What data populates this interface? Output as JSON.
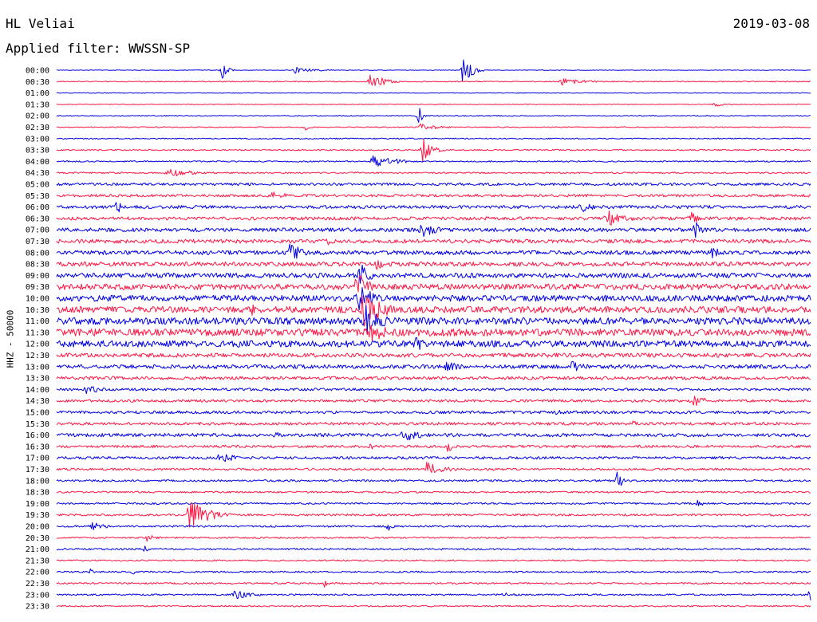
{
  "header": {
    "station": "HL Veliai",
    "date": "2019-03-08",
    "filter": "Applied filter: WWSSN-SP"
  },
  "chart_data": {
    "type": "line",
    "title": "HL Veliai",
    "subtitle": "Applied filter: WWSSN-SP",
    "date": "2019-03-08",
    "ylabel": "HHZ - 50000",
    "xlabel": "",
    "grid": false,
    "series_colors": [
      "#0000e6",
      "#ff1744"
    ],
    "trace_minutes": 30,
    "categories": [
      "00:00",
      "00:30",
      "01:00",
      "01:30",
      "02:00",
      "02:30",
      "03:00",
      "03:30",
      "04:00",
      "04:30",
      "05:00",
      "05:30",
      "06:00",
      "06:30",
      "07:00",
      "07:30",
      "08:00",
      "08:30",
      "09:00",
      "09:30",
      "10:00",
      "10:30",
      "11:00",
      "11:30",
      "12:00",
      "12:30",
      "13:00",
      "13:30",
      "14:00",
      "14:30",
      "15:00",
      "15:30",
      "16:00",
      "16:30",
      "17:00",
      "17:30",
      "18:00",
      "18:30",
      "19:00",
      "19:30",
      "20:00",
      "20:30",
      "21:00",
      "21:30",
      "22:00",
      "22:30",
      "23:00",
      "23:30"
    ],
    "noise_level": [
      0.4,
      0.6,
      0.4,
      0.5,
      0.6,
      0.6,
      0.7,
      0.8,
      0.8,
      0.9,
      1.6,
      1.6,
      2.0,
      2.1,
      2.3,
      2.4,
      2.6,
      2.7,
      3.0,
      3.6,
      3.8,
      4.0,
      4.2,
      4.5,
      4.0,
      2.6,
      2.4,
      2.0,
      1.6,
      1.6,
      1.8,
      1.8,
      2.1,
      1.6,
      1.6,
      1.3,
      1.2,
      1.1,
      1.1,
      1.3,
      1.1,
      1.0,
      1.1,
      0.9,
      1.0,
      1.0,
      1.0,
      0.9
    ],
    "events": [
      {
        "trace": 0,
        "minute": 6.6,
        "amplitude": 14,
        "duration": 0.5
      },
      {
        "trace": 0,
        "minute": 9.5,
        "amplitude": 4,
        "duration": 2.2
      },
      {
        "trace": 0,
        "minute": 16.2,
        "amplitude": 26,
        "duration": 0.8
      },
      {
        "trace": 1,
        "minute": 12.5,
        "amplitude": 12,
        "duration": 1.4
      },
      {
        "trace": 1,
        "minute": 20.1,
        "amplitude": 5,
        "duration": 2.5
      },
      {
        "trace": 3,
        "minute": 26.2,
        "amplitude": 3,
        "duration": 1.5
      },
      {
        "trace": 5,
        "minute": 9.9,
        "amplitude": 4,
        "duration": 0.5
      },
      {
        "trace": 5,
        "minute": 14.5,
        "amplitude": 5,
        "duration": 2.0
      },
      {
        "trace": 4,
        "minute": 14.4,
        "amplitude": 20,
        "duration": 0.3
      },
      {
        "trace": 7,
        "minute": 14.6,
        "amplitude": 20,
        "duration": 0.9
      },
      {
        "trace": 8,
        "minute": 12.6,
        "amplitude": 9,
        "duration": 2.5
      },
      {
        "trace": 9,
        "minute": 4.4,
        "amplitude": 6,
        "duration": 3.4
      },
      {
        "trace": 11,
        "minute": 8.5,
        "amplitude": 6,
        "duration": 2.5
      },
      {
        "trace": 12,
        "minute": 2.4,
        "amplitude": 10,
        "duration": 0.9
      },
      {
        "trace": 12,
        "minute": 20.8,
        "amplitude": 10,
        "duration": 1.4
      },
      {
        "trace": 13,
        "minute": 21.9,
        "amplitude": 12,
        "duration": 2.0
      },
      {
        "trace": 13,
        "minute": 25.3,
        "amplitude": 14,
        "duration": 0.5
      },
      {
        "trace": 14,
        "minute": 14.5,
        "amplitude": 10,
        "duration": 2.0
      },
      {
        "trace": 14,
        "minute": 25.4,
        "amplitude": 13,
        "duration": 0.8
      },
      {
        "trace": 15,
        "minute": 10.7,
        "amplitude": 7,
        "duration": 0.9
      },
      {
        "trace": 16,
        "minute": 9.3,
        "amplitude": 13,
        "duration": 1.5
      },
      {
        "trace": 16,
        "minute": 26.1,
        "amplitude": 11,
        "duration": 0.8
      },
      {
        "trace": 17,
        "minute": 12.8,
        "amplitude": 11,
        "duration": 0.7
      },
      {
        "trace": 18,
        "minute": 12.1,
        "amplitude": 16,
        "duration": 1.2
      },
      {
        "trace": 19,
        "minute": 11.9,
        "amplitude": 24,
        "duration": 1.4
      },
      {
        "trace": 20,
        "minute": 12.0,
        "amplitude": 22,
        "duration": 1.6
      },
      {
        "trace": 21,
        "minute": 12.2,
        "amplitude": 26,
        "duration": 2.2
      },
      {
        "trace": 21,
        "minute": 7.8,
        "amplitude": 9,
        "duration": 1.2
      },
      {
        "trace": 22,
        "minute": 12.3,
        "amplitude": 20,
        "duration": 2.0
      },
      {
        "trace": 23,
        "minute": 12.4,
        "amplitude": 14,
        "duration": 3.0
      },
      {
        "trace": 24,
        "minute": 14.3,
        "amplitude": 11,
        "duration": 1.4
      },
      {
        "trace": 26,
        "minute": 15.5,
        "amplitude": 7,
        "duration": 2.0
      },
      {
        "trace": 26,
        "minute": 20.5,
        "amplitude": 7,
        "duration": 2.0
      },
      {
        "trace": 28,
        "minute": 1.2,
        "amplitude": 7,
        "duration": 1.5
      },
      {
        "trace": 29,
        "minute": 25.3,
        "amplitude": 9,
        "duration": 1.5
      },
      {
        "trace": 30,
        "minute": 19.9,
        "amplitude": 4,
        "duration": 1.2
      },
      {
        "trace": 31,
        "minute": 23.0,
        "amplitude": 7,
        "duration": 0.6
      },
      {
        "trace": 32,
        "minute": 13.8,
        "amplitude": 10,
        "duration": 1.9
      },
      {
        "trace": 32,
        "minute": 8.7,
        "amplitude": 6,
        "duration": 0.6
      },
      {
        "trace": 33,
        "minute": 15.6,
        "amplitude": 10,
        "duration": 0.3
      },
      {
        "trace": 33,
        "minute": 12.5,
        "amplitude": 8,
        "duration": 0.3
      },
      {
        "trace": 34,
        "minute": 6.5,
        "amplitude": 9,
        "duration": 1.6
      },
      {
        "trace": 35,
        "minute": 14.7,
        "amplitude": 10,
        "duration": 2.0
      },
      {
        "trace": 36,
        "minute": 22.3,
        "amplitude": 11,
        "duration": 0.8
      },
      {
        "trace": 38,
        "minute": 25.5,
        "amplitude": 6,
        "duration": 0.8
      },
      {
        "trace": 39,
        "minute": 5.3,
        "amplitude": 22,
        "duration": 2.0
      },
      {
        "trace": 40,
        "minute": 1.4,
        "amplitude": 7,
        "duration": 1.4
      },
      {
        "trace": 40,
        "minute": 13.2,
        "amplitude": 8,
        "duration": 0.5
      },
      {
        "trace": 41,
        "minute": 3.6,
        "amplitude": 6,
        "duration": 1.0
      },
      {
        "trace": 42,
        "minute": 3.5,
        "amplitude": 5,
        "duration": 0.4
      },
      {
        "trace": 44,
        "minute": 1.4,
        "amplitude": 9,
        "duration": 0.3
      },
      {
        "trace": 44,
        "minute": 3.0,
        "amplitude": 6,
        "duration": 0.3
      },
      {
        "trace": 45,
        "minute": 10.7,
        "amplitude": 8,
        "duration": 0.3
      },
      {
        "trace": 46,
        "minute": 7.1,
        "amplitude": 8,
        "duration": 1.6
      },
      {
        "trace": 46,
        "minute": 17.8,
        "amplitude": 4,
        "duration": 1.2
      },
      {
        "trace": 46,
        "minute": 30.0,
        "amplitude": 10,
        "duration": 0.3
      }
    ]
  }
}
